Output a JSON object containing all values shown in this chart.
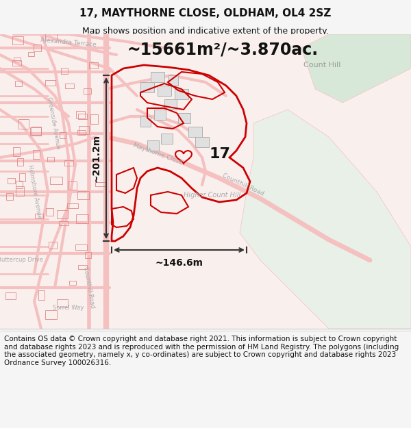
{
  "title_line1": "17, MAYTHORNE CLOSE, OLDHAM, OL4 2SZ",
  "title_line2": "Map shows position and indicative extent of the property.",
  "area_text": "~15661m²/~3.870ac.",
  "width_text": "~146.6m",
  "height_text": "~201.2m",
  "label_17": "17",
  "label_count_hill": "Count Hill",
  "label_higher_count_hill": "Higher Count Hill",
  "label_maythorne": "Maythorne Close",
  "label_counthill_road": "Counthill Road",
  "label_buttercup": "Buttercup Drive",
  "label_greenside": "Greenside Avenue",
  "label_helmshore": "Helmshore Avenue",
  "label_sorrel": "Sorrel Way",
  "label_counthill_road2": "Counthill Road",
  "label_alexandra": "Alexandra Terrace",
  "footer_text": "Contains OS data © Crown copyright and database right 2021. This information is subject to Crown copyright and database rights 2023 and is reproduced with the permission of HM Land Registry. The polygons (including the associated geometry, namely x, y co-ordinates) are subject to Crown copyright and database rights 2023 Ordnance Survey 100026316.",
  "bg_color": "#f5f5f5",
  "road_color_light": "#f5c0c0",
  "road_color_dark": "#e08888",
  "plot_outline_color": "#cc0000",
  "dim_line_color": "#333333",
  "text_color_dark": "#111111",
  "title_fontsize": 11,
  "subtitle_fontsize": 9,
  "footer_fontsize": 7.5
}
